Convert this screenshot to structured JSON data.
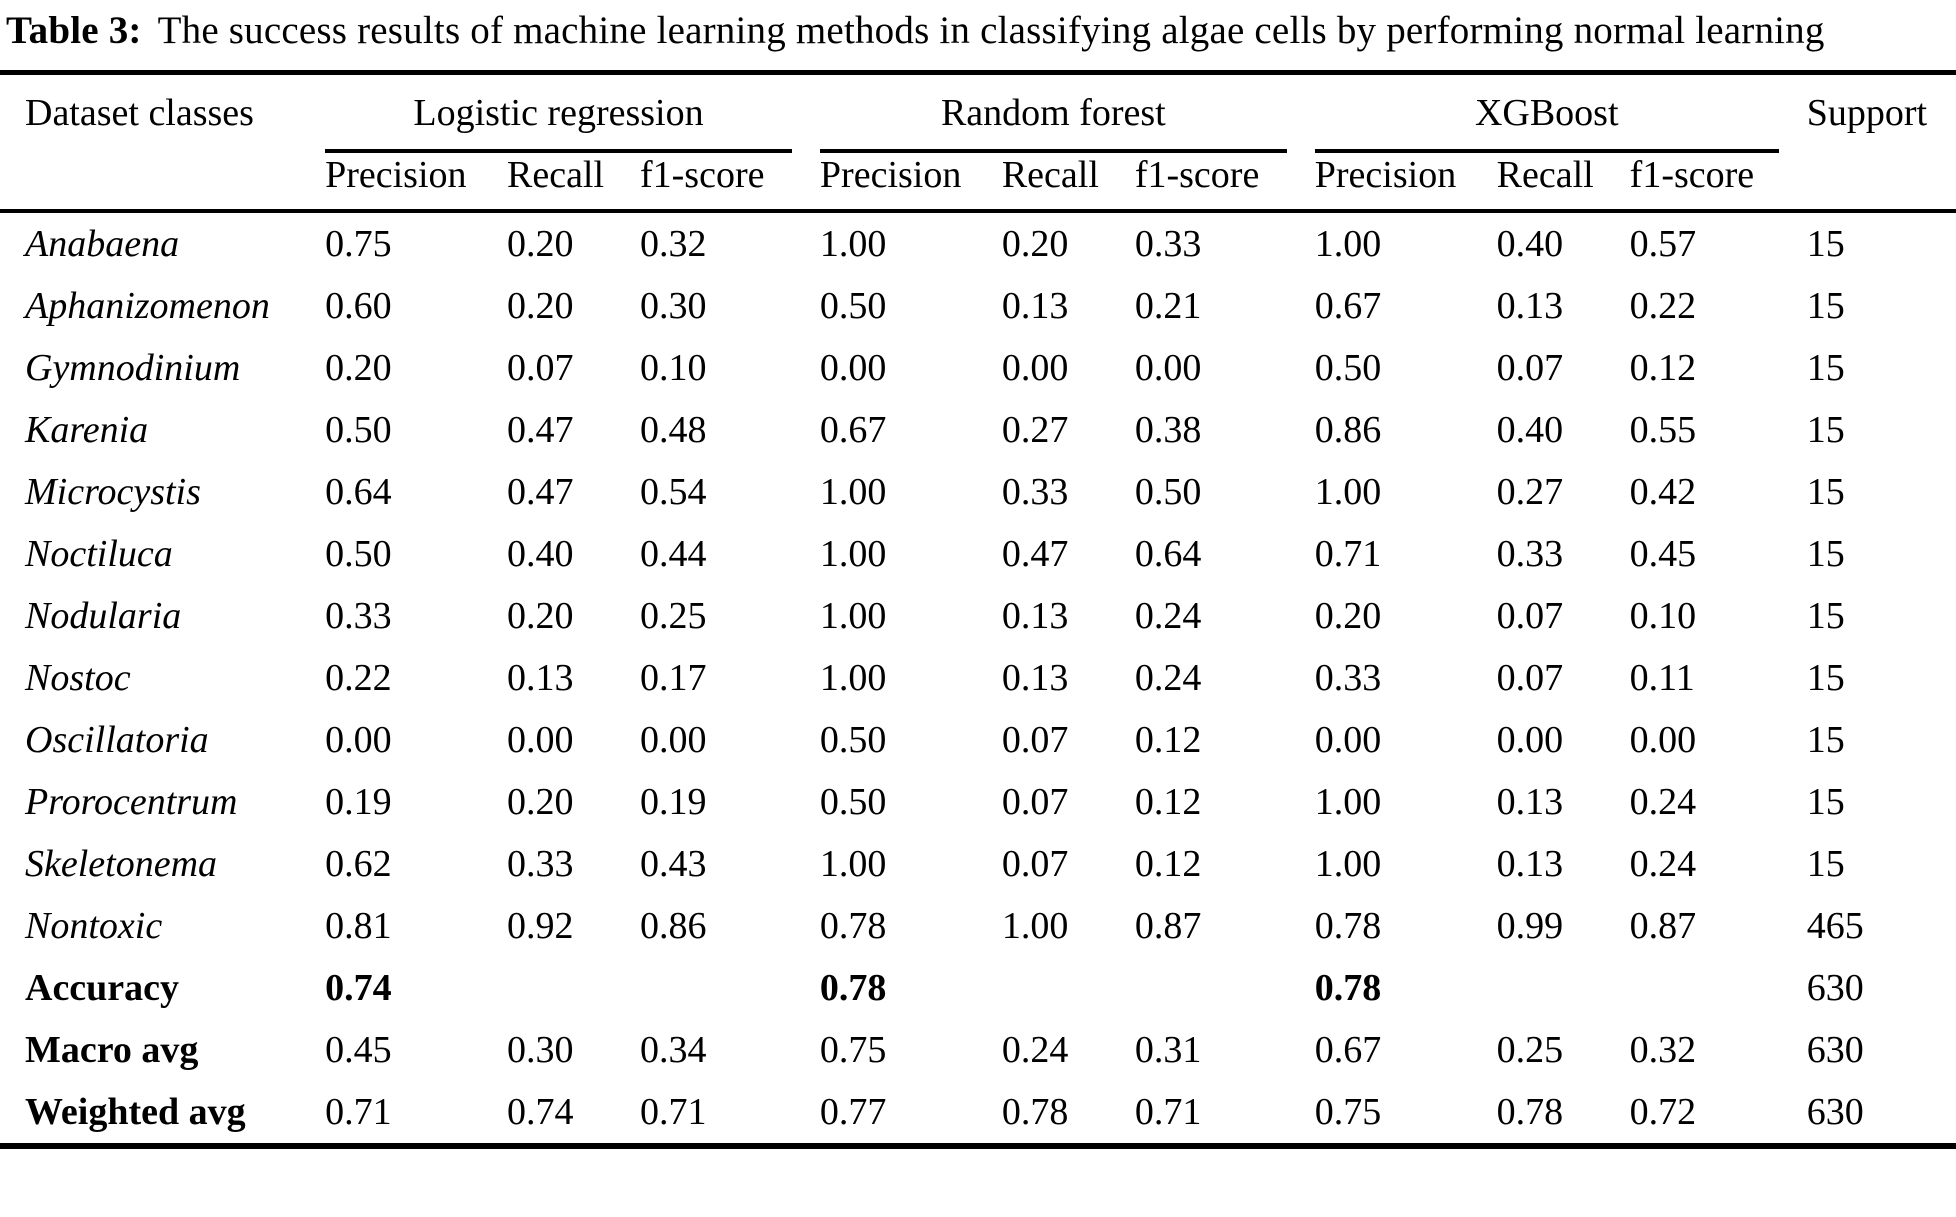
{
  "caption": {
    "label": "Table 3:",
    "text": "The success results of machine learning methods in classifying algae cells by performing normal learning"
  },
  "table": {
    "dataset_classes_header": "Dataset classes",
    "support_header": "Support",
    "groups": [
      {
        "label": "Logistic regression"
      },
      {
        "label": "Random forest"
      },
      {
        "label": "XGBoost"
      }
    ],
    "metric_headers": [
      "Precision",
      "Recall",
      "f1-score"
    ],
    "rows": [
      {
        "label": "Anabaena",
        "label_style": "italic",
        "bold_metrics": false,
        "values": [
          "0.75",
          "0.20",
          "0.32",
          "1.00",
          "0.20",
          "0.33",
          "1.00",
          "0.40",
          "0.57",
          "15"
        ]
      },
      {
        "label": "Aphanizomenon",
        "label_style": "italic",
        "bold_metrics": false,
        "values": [
          "0.60",
          "0.20",
          "0.30",
          "0.50",
          "0.13",
          "0.21",
          "0.67",
          "0.13",
          "0.22",
          "15"
        ]
      },
      {
        "label": "Gymnodinium",
        "label_style": "italic",
        "bold_metrics": false,
        "values": [
          "0.20",
          "0.07",
          "0.10",
          "0.00",
          "0.00",
          "0.00",
          "0.50",
          "0.07",
          "0.12",
          "15"
        ]
      },
      {
        "label": "Karenia",
        "label_style": "italic",
        "bold_metrics": false,
        "values": [
          "0.50",
          "0.47",
          "0.48",
          "0.67",
          "0.27",
          "0.38",
          "0.86",
          "0.40",
          "0.55",
          "15"
        ]
      },
      {
        "label": "Microcystis",
        "label_style": "italic",
        "bold_metrics": false,
        "values": [
          "0.64",
          "0.47",
          "0.54",
          "1.00",
          "0.33",
          "0.50",
          "1.00",
          "0.27",
          "0.42",
          "15"
        ]
      },
      {
        "label": "Noctiluca",
        "label_style": "italic",
        "bold_metrics": false,
        "values": [
          "0.50",
          "0.40",
          "0.44",
          "1.00",
          "0.47",
          "0.64",
          "0.71",
          "0.33",
          "0.45",
          "15"
        ]
      },
      {
        "label": "Nodularia",
        "label_style": "italic",
        "bold_metrics": false,
        "values": [
          "0.33",
          "0.20",
          "0.25",
          "1.00",
          "0.13",
          "0.24",
          "0.20",
          "0.07",
          "0.10",
          "15"
        ]
      },
      {
        "label": "Nostoc",
        "label_style": "italic",
        "bold_metrics": false,
        "values": [
          "0.22",
          "0.13",
          "0.17",
          "1.00",
          "0.13",
          "0.24",
          "0.33",
          "0.07",
          "0.11",
          "15"
        ]
      },
      {
        "label": "Oscillatoria",
        "label_style": "italic",
        "bold_metrics": false,
        "values": [
          "0.00",
          "0.00",
          "0.00",
          "0.50",
          "0.07",
          "0.12",
          "0.00",
          "0.00",
          "0.00",
          "15"
        ]
      },
      {
        "label": "Prorocentrum",
        "label_style": "italic",
        "bold_metrics": false,
        "values": [
          "0.19",
          "0.20",
          "0.19",
          "0.50",
          "0.07",
          "0.12",
          "1.00",
          "0.13",
          "0.24",
          "15"
        ]
      },
      {
        "label": "Skeletonema",
        "label_style": "italic",
        "bold_metrics": false,
        "values": [
          "0.62",
          "0.33",
          "0.43",
          "1.00",
          "0.07",
          "0.12",
          "1.00",
          "0.13",
          "0.24",
          "15"
        ]
      },
      {
        "label": "Nontoxic",
        "label_style": "italic",
        "bold_metrics": false,
        "values": [
          "0.81",
          "0.92",
          "0.86",
          "0.78",
          "1.00",
          "0.87",
          "0.78",
          "0.99",
          "0.87",
          "465"
        ]
      },
      {
        "label": "Accuracy",
        "label_style": "bold",
        "bold_metrics": true,
        "values": [
          "0.74",
          "",
          "",
          "0.78",
          "",
          "",
          "0.78",
          "",
          "",
          "630"
        ]
      },
      {
        "label": "Macro avg",
        "label_style": "bold",
        "bold_metrics": false,
        "values": [
          "0.45",
          "0.30",
          "0.34",
          "0.75",
          "0.24",
          "0.31",
          "0.67",
          "0.25",
          "0.32",
          "630"
        ]
      },
      {
        "label": "Weighted avg",
        "label_style": "bold",
        "bold_metrics": false,
        "values": [
          "0.71",
          "0.74",
          "0.71",
          "0.77",
          "0.78",
          "0.71",
          "0.75",
          "0.78",
          "0.72",
          "630"
        ]
      }
    ]
  }
}
